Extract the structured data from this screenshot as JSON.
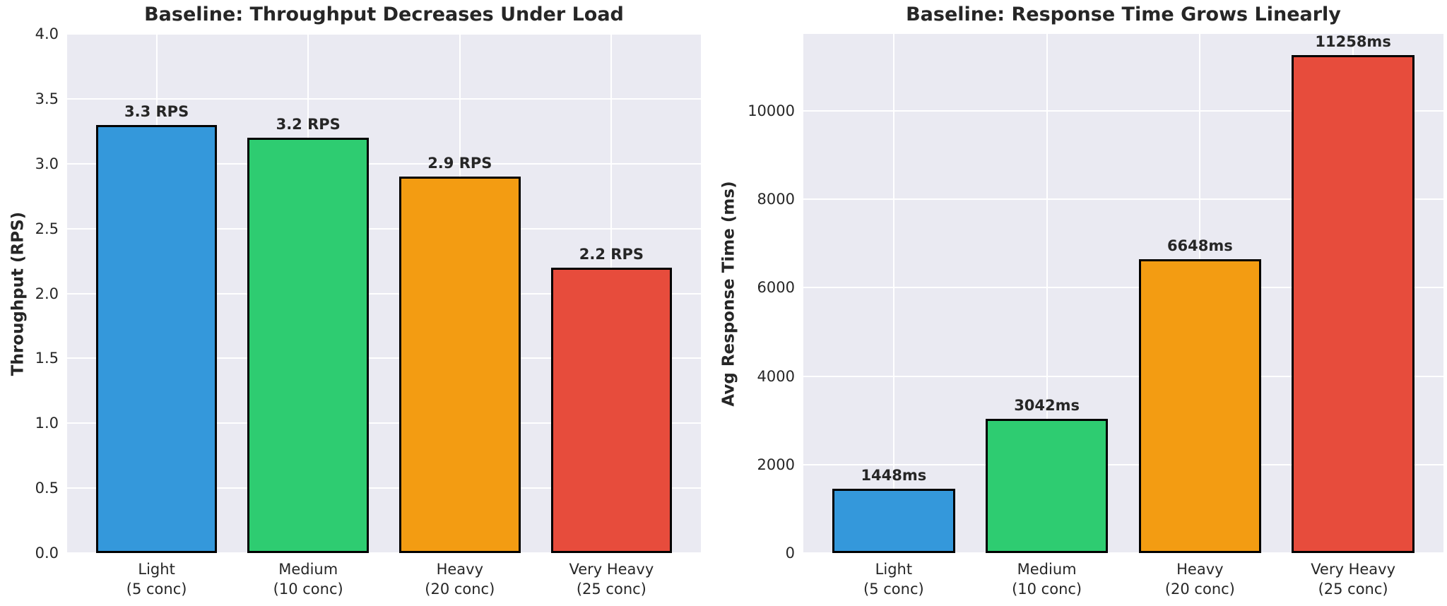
{
  "figure": {
    "background": "#ffffff",
    "text_color": "#262626"
  },
  "chart_data": [
    {
      "type": "bar",
      "title": "Baseline: Throughput Decreases Under Load",
      "xlabel": "",
      "ylabel": "Throughput (RPS)",
      "categories": [
        "Light\n(5 conc)",
        "Medium\n(10 conc)",
        "Heavy\n(20 conc)",
        "Very Heavy\n(25 conc)"
      ],
      "values": [
        3.3,
        3.2,
        2.9,
        2.2
      ],
      "bar_labels": [
        "3.3 RPS",
        "3.2 RPS",
        "2.9 RPS",
        "2.2 RPS"
      ],
      "bar_colors": [
        "#3498db",
        "#2ecc71",
        "#f39c12",
        "#e74c3c"
      ],
      "bar_edge_color": "#000000",
      "ylim": [
        0,
        4.0
      ],
      "yticks": [
        0.0,
        0.5,
        1.0,
        1.5,
        2.0,
        2.5,
        3.0,
        3.5,
        4.0
      ],
      "ytick_labels": [
        "0.0",
        "0.5",
        "1.0",
        "1.5",
        "2.0",
        "2.5",
        "3.0",
        "3.5",
        "4.0"
      ],
      "grid": true,
      "grid_color": "#ffffff",
      "plot_background": "#eaeaf2",
      "legend": "none"
    },
    {
      "type": "bar",
      "title": "Baseline: Response Time Grows Linearly",
      "xlabel": "",
      "ylabel": "Avg Response Time (ms)",
      "categories": [
        "Light\n(5 conc)",
        "Medium\n(10 conc)",
        "Heavy\n(20 conc)",
        "Very Heavy\n(25 conc)"
      ],
      "values": [
        1448,
        3042,
        6648,
        11258
      ],
      "bar_labels": [
        "1448ms",
        "3042ms",
        "6648ms",
        "11258ms"
      ],
      "bar_colors": [
        "#3498db",
        "#2ecc71",
        "#f39c12",
        "#e74c3c"
      ],
      "bar_edge_color": "#000000",
      "ylim": [
        0,
        11740
      ],
      "yticks": [
        0,
        2000,
        4000,
        6000,
        8000,
        10000
      ],
      "ytick_labels": [
        "0",
        "2000",
        "4000",
        "6000",
        "8000",
        "10000"
      ],
      "grid": true,
      "grid_color": "#ffffff",
      "plot_background": "#eaeaf2",
      "legend": "none"
    }
  ]
}
